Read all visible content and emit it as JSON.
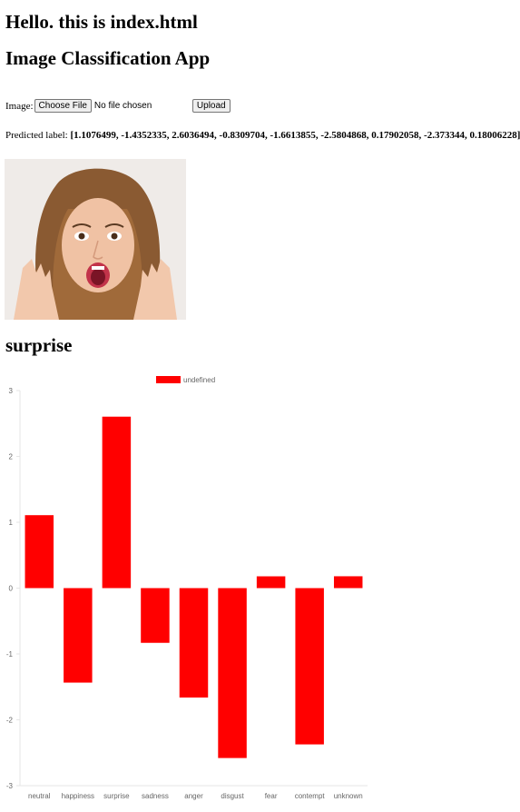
{
  "header": {
    "hello": "Hello. this is index.html",
    "app_title": "Image Classification App"
  },
  "form": {
    "image_label": "Image:",
    "choose_file_label": "Choose File",
    "file_status": "No file chosen",
    "upload_label": "Upload"
  },
  "prediction": {
    "label_prefix": "Predicted label:",
    "values_text": "[1.1076499, -1.4352335, 2.6036494, -0.8309704, -1.6613855, -2.5804868, 0.17902058, -2.373344, 0.18006228]",
    "result_label": "surprise"
  },
  "colors": {
    "bar": "#ff0000"
  },
  "chart_data": {
    "type": "bar",
    "categories": [
      "neutral",
      "happiness",
      "surprise",
      "sadness",
      "anger",
      "disgust",
      "fear",
      "contempt",
      "unknown"
    ],
    "series": [
      {
        "name": "undefined",
        "values": [
          1.1076499,
          -1.4352335,
          2.6036494,
          -0.8309704,
          -1.6613855,
          -2.5804868,
          0.17902058,
          -2.373344,
          0.18006228
        ]
      }
    ],
    "ylim": [
      -3,
      3
    ],
    "yticks": [
      "3",
      "2",
      "1",
      "0",
      "-1",
      "-2",
      "-3"
    ],
    "legend": "top",
    "grid": false
  }
}
